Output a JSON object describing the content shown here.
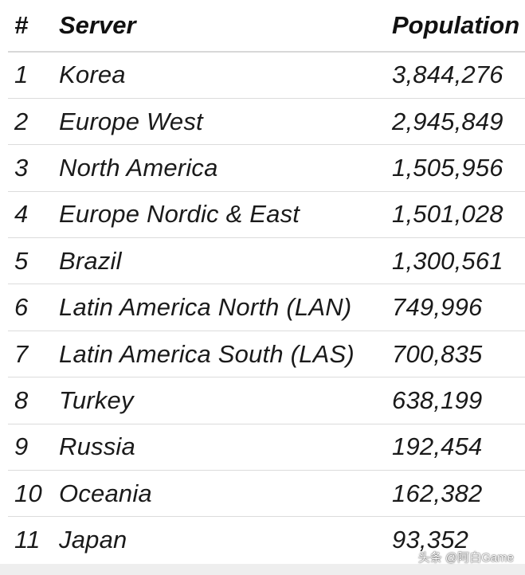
{
  "table": {
    "headers": {
      "rank": "#",
      "server": "Server",
      "population": "Population"
    },
    "rows": [
      {
        "rank": "1",
        "server": "Korea",
        "population": "3,844,276"
      },
      {
        "rank": "2",
        "server": "Europe West",
        "population": "2,945,849"
      },
      {
        "rank": "3",
        "server": "North America",
        "population": "1,505,956"
      },
      {
        "rank": "4",
        "server": "Europe Nordic & East",
        "population": "1,501,028"
      },
      {
        "rank": "5",
        "server": "Brazil",
        "population": "1,300,561"
      },
      {
        "rank": "6",
        "server": "Latin America North (LAN)",
        "population": "749,996"
      },
      {
        "rank": "7",
        "server": "Latin America South (LAS)",
        "population": "700,835"
      },
      {
        "rank": "8",
        "server": "Turkey",
        "population": "638,199"
      },
      {
        "rank": "9",
        "server": "Russia",
        "population": "192,454"
      },
      {
        "rank": "10",
        "server": "Oceania",
        "population": "162,382"
      },
      {
        "rank": "11",
        "server": "Japan",
        "population": "93,352"
      }
    ]
  },
  "watermark": "头条 @阿白Game"
}
